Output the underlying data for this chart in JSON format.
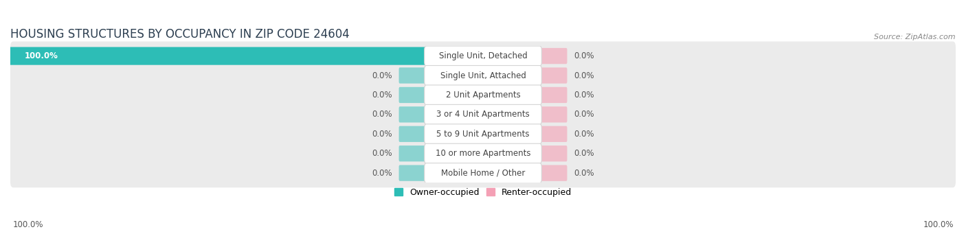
{
  "title": "HOUSING STRUCTURES BY OCCUPANCY IN ZIP CODE 24604",
  "source": "Source: ZipAtlas.com",
  "categories": [
    "Single Unit, Detached",
    "Single Unit, Attached",
    "2 Unit Apartments",
    "3 or 4 Unit Apartments",
    "5 to 9 Unit Apartments",
    "10 or more Apartments",
    "Mobile Home / Other"
  ],
  "owner_values": [
    100.0,
    0.0,
    0.0,
    0.0,
    0.0,
    0.0,
    0.0
  ],
  "renter_values": [
    0.0,
    0.0,
    0.0,
    0.0,
    0.0,
    0.0,
    0.0
  ],
  "owner_color": "#2DBDB6",
  "renter_color": "#F4A0B5",
  "row_bg_color": "#EBEBEB",
  "title_fontsize": 12,
  "source_fontsize": 8,
  "label_fontsize": 8.5,
  "cat_fontsize": 8.5,
  "axis_label_left": "100.0%",
  "axis_label_right": "100.0%"
}
